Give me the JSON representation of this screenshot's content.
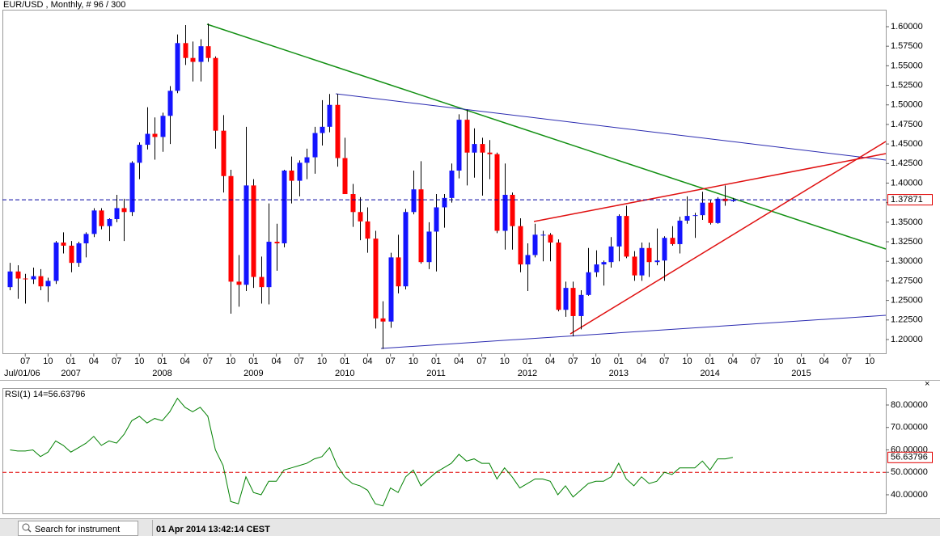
{
  "chart_data": [
    {
      "type": "candlestick",
      "title": "EUR/USD , Monthly, # 96 / 300",
      "start_label": "Jul/01/06",
      "x": [
        "2006-05",
        "2006-06",
        "2006-07",
        "2006-08",
        "2006-09",
        "2006-10",
        "2006-11",
        "2006-12",
        "2007-01",
        "2007-02",
        "2007-03",
        "2007-04",
        "2007-05",
        "2007-06",
        "2007-07",
        "2007-08",
        "2007-09",
        "2007-10",
        "2007-11",
        "2007-12",
        "2008-01",
        "2008-02",
        "2008-03",
        "2008-04",
        "2008-05",
        "2008-06",
        "2008-07",
        "2008-08",
        "2008-09",
        "2008-10",
        "2008-11",
        "2008-12",
        "2009-01",
        "2009-02",
        "2009-03",
        "2009-04",
        "2009-05",
        "2009-06",
        "2009-07",
        "2009-08",
        "2009-09",
        "2009-10",
        "2009-11",
        "2009-12",
        "2010-01",
        "2010-02",
        "2010-03",
        "2010-04",
        "2010-05",
        "2010-06",
        "2010-07",
        "2010-08",
        "2010-09",
        "2010-10",
        "2010-11",
        "2010-12",
        "2011-01",
        "2011-02",
        "2011-03",
        "2011-04",
        "2011-05",
        "2011-06",
        "2011-07",
        "2011-08",
        "2011-09",
        "2011-10",
        "2011-11",
        "2011-12",
        "2012-01",
        "2012-02",
        "2012-03",
        "2012-04",
        "2012-05",
        "2012-06",
        "2012-07",
        "2012-08",
        "2012-09",
        "2012-10",
        "2012-11",
        "2012-12",
        "2013-01",
        "2013-02",
        "2013-03",
        "2013-04",
        "2013-05",
        "2013-06",
        "2013-07",
        "2013-08",
        "2013-09",
        "2013-10",
        "2013-11",
        "2013-12",
        "2014-01",
        "2014-02",
        "2014-03",
        "2014-04"
      ],
      "open": [
        1.267,
        1.287,
        1.278,
        1.277,
        1.281,
        1.268,
        1.275,
        1.324,
        1.32,
        1.298,
        1.323,
        1.335,
        1.365,
        1.345,
        1.354,
        1.368,
        1.363,
        1.426,
        1.449,
        1.463,
        1.459,
        1.486,
        1.518,
        1.579,
        1.56,
        1.555,
        1.575,
        1.56,
        1.467,
        1.409,
        1.274,
        1.27,
        1.397,
        1.28,
        1.267,
        1.325,
        1.323,
        1.416,
        1.403,
        1.426,
        1.433,
        1.464,
        1.472,
        1.5,
        1.432,
        1.386,
        1.363,
        1.351,
        1.329,
        1.227,
        1.223,
        1.305,
        1.268,
        1.363,
        1.392,
        1.299,
        1.338,
        1.369,
        1.381,
        1.416,
        1.481,
        1.439,
        1.45,
        1.439,
        1.437,
        1.339,
        1.385,
        1.345,
        1.296,
        1.308,
        1.334,
        1.334,
        1.324,
        1.238,
        1.266,
        1.23,
        1.257,
        1.286,
        1.296,
        1.299,
        1.319,
        1.358,
        1.306,
        1.282,
        1.317,
        1.299,
        1.301,
        1.33,
        1.322,
        1.352,
        1.358,
        1.359,
        1.375,
        1.349,
        1.38,
        1.377
      ],
      "high": [
        1.298,
        1.295,
        1.284,
        1.292,
        1.29,
        1.279,
        1.326,
        1.337,
        1.326,
        1.325,
        1.337,
        1.368,
        1.368,
        1.355,
        1.385,
        1.38,
        1.428,
        1.452,
        1.497,
        1.484,
        1.49,
        1.524,
        1.59,
        1.602,
        1.581,
        1.584,
        1.604,
        1.562,
        1.487,
        1.417,
        1.308,
        1.472,
        1.405,
        1.306,
        1.374,
        1.348,
        1.417,
        1.434,
        1.429,
        1.444,
        1.472,
        1.506,
        1.514,
        1.514,
        1.458,
        1.399,
        1.382,
        1.369,
        1.339,
        1.249,
        1.311,
        1.334,
        1.367,
        1.416,
        1.428,
        1.35,
        1.386,
        1.386,
        1.425,
        1.488,
        1.494,
        1.47,
        1.458,
        1.455,
        1.439,
        1.425,
        1.388,
        1.355,
        1.323,
        1.348,
        1.339,
        1.336,
        1.328,
        1.274,
        1.274,
        1.263,
        1.317,
        1.314,
        1.301,
        1.331,
        1.36,
        1.371,
        1.313,
        1.324,
        1.324,
        1.342,
        1.332,
        1.345,
        1.357,
        1.383,
        1.362,
        1.389,
        1.378,
        1.382,
        1.397,
        1.381
      ],
      "low": [
        1.263,
        1.252,
        1.246,
        1.271,
        1.263,
        1.248,
        1.271,
        1.31,
        1.286,
        1.293,
        1.305,
        1.331,
        1.341,
        1.326,
        1.35,
        1.326,
        1.358,
        1.405,
        1.443,
        1.43,
        1.44,
        1.45,
        1.515,
        1.551,
        1.53,
        1.53,
        1.555,
        1.444,
        1.388,
        1.233,
        1.242,
        1.262,
        1.266,
        1.246,
        1.245,
        1.288,
        1.318,
        1.374,
        1.383,
        1.405,
        1.412,
        1.448,
        1.465,
        1.421,
        1.386,
        1.344,
        1.327,
        1.311,
        1.214,
        1.188,
        1.215,
        1.259,
        1.264,
        1.36,
        1.297,
        1.29,
        1.287,
        1.343,
        1.375,
        1.406,
        1.397,
        1.407,
        1.384,
        1.405,
        1.336,
        1.315,
        1.315,
        1.286,
        1.262,
        1.305,
        1.3,
        1.3,
        1.236,
        1.229,
        1.204,
        1.213,
        1.256,
        1.28,
        1.269,
        1.292,
        1.3,
        1.304,
        1.275,
        1.275,
        1.28,
        1.295,
        1.275,
        1.32,
        1.31,
        1.348,
        1.33,
        1.353,
        1.347,
        1.348,
        1.371,
        1.376
      ],
      "close": [
        1.287,
        1.278,
        1.277,
        1.281,
        1.268,
        1.275,
        1.324,
        1.32,
        1.298,
        1.323,
        1.335,
        1.365,
        1.345,
        1.354,
        1.368,
        1.363,
        1.426,
        1.449,
        1.463,
        1.459,
        1.486,
        1.518,
        1.579,
        1.56,
        1.555,
        1.575,
        1.56,
        1.467,
        1.409,
        1.274,
        1.27,
        1.397,
        1.28,
        1.267,
        1.325,
        1.323,
        1.416,
        1.403,
        1.426,
        1.433,
        1.464,
        1.472,
        1.5,
        1.432,
        1.386,
        1.363,
        1.351,
        1.329,
        1.227,
        1.223,
        1.305,
        1.268,
        1.363,
        1.392,
        1.299,
        1.338,
        1.369,
        1.381,
        1.416,
        1.481,
        1.439,
        1.45,
        1.439,
        1.437,
        1.339,
        1.385,
        1.345,
        1.296,
        1.308,
        1.334,
        1.334,
        1.324,
        1.238,
        1.266,
        1.23,
        1.257,
        1.286,
        1.296,
        1.299,
        1.319,
        1.358,
        1.306,
        1.282,
        1.317,
        1.299,
        1.301,
        1.33,
        1.322,
        1.352,
        1.358,
        1.359,
        1.375,
        1.349,
        1.38,
        1.377,
        1.3787
      ],
      "up_color": "#1414ff",
      "down_color": "#ff0000",
      "wick_color": "#000000",
      "last_price": 1.37871,
      "last_price_color": "#0000a0",
      "xlim": [
        "2006-04",
        "2015-12"
      ],
      "xticks": [
        {
          "value": "2006-07",
          "label": "07"
        },
        {
          "value": "2006-10",
          "label": "10"
        },
        {
          "value": "2007-01",
          "label": "01"
        },
        {
          "value": "2007-04",
          "label": "04"
        },
        {
          "value": "2007-07",
          "label": "07"
        },
        {
          "value": "2007-10",
          "label": "10"
        },
        {
          "value": "2008-01",
          "label": "01"
        },
        {
          "value": "2008-04",
          "label": "04"
        },
        {
          "value": "2008-07",
          "label": "07"
        },
        {
          "value": "2008-10",
          "label": "10"
        },
        {
          "value": "2009-01",
          "label": "01"
        },
        {
          "value": "2009-04",
          "label": "04"
        },
        {
          "value": "2009-07",
          "label": "07"
        },
        {
          "value": "2009-10",
          "label": "10"
        },
        {
          "value": "2010-01",
          "label": "01"
        },
        {
          "value": "2010-04",
          "label": "04"
        },
        {
          "value": "2010-07",
          "label": "07"
        },
        {
          "value": "2010-10",
          "label": "10"
        },
        {
          "value": "2011-01",
          "label": "01"
        },
        {
          "value": "2011-04",
          "label": "04"
        },
        {
          "value": "2011-07",
          "label": "07"
        },
        {
          "value": "2011-10",
          "label": "10"
        },
        {
          "value": "2012-01",
          "label": "01"
        },
        {
          "value": "2012-04",
          "label": "04"
        },
        {
          "value": "2012-07",
          "label": "07"
        },
        {
          "value": "2012-10",
          "label": "10"
        },
        {
          "value": "2013-01",
          "label": "01"
        },
        {
          "value": "2013-04",
          "label": "04"
        },
        {
          "value": "2013-07",
          "label": "07"
        },
        {
          "value": "2013-10",
          "label": "10"
        },
        {
          "value": "2014-01",
          "label": "01"
        },
        {
          "value": "2014-04",
          "label": "04"
        },
        {
          "value": "2014-07",
          "label": "07"
        },
        {
          "value": "2014-10",
          "label": "10"
        },
        {
          "value": "2015-01",
          "label": "01"
        },
        {
          "value": "2015-04",
          "label": "04"
        },
        {
          "value": "2015-07",
          "label": "07"
        },
        {
          "value": "2015-10",
          "label": "10"
        }
      ],
      "year_ticks": [
        {
          "value": "2007-01",
          "label": "2007"
        },
        {
          "value": "2008-01",
          "label": "2008"
        },
        {
          "value": "2009-01",
          "label": "2009"
        },
        {
          "value": "2010-01",
          "label": "2010"
        },
        {
          "value": "2011-01",
          "label": "2011"
        },
        {
          "value": "2012-01",
          "label": "2012"
        },
        {
          "value": "2013-01",
          "label": "2013"
        },
        {
          "value": "2014-01",
          "label": "2014"
        },
        {
          "value": "2015-01",
          "label": "2015"
        }
      ],
      "ylim": [
        1.1824,
        1.6217
      ],
      "yticks": [
        {
          "value": 1.2,
          "label": "1.20000"
        },
        {
          "value": 1.225,
          "label": "1.22500"
        },
        {
          "value": 1.25,
          "label": "1.25000"
        },
        {
          "value": 1.275,
          "label": "1.27500"
        },
        {
          "value": 1.3,
          "label": "1.30000"
        },
        {
          "value": 1.325,
          "label": "1.32500"
        },
        {
          "value": 1.35,
          "label": "1.35000"
        },
        {
          "value": 1.375,
          "label": "1.37500"
        },
        {
          "value": 1.4,
          "label": "1.40000"
        },
        {
          "value": 1.425,
          "label": "1.42500"
        },
        {
          "value": 1.45,
          "label": "1.45000"
        },
        {
          "value": 1.475,
          "label": "1.47500"
        },
        {
          "value": 1.5,
          "label": "1.50000"
        },
        {
          "value": 1.525,
          "label": "1.52500"
        },
        {
          "value": 1.55,
          "label": "1.55000"
        },
        {
          "value": 1.575,
          "label": "1.57500"
        },
        {
          "value": 1.6,
          "label": "1.60000"
        }
      ]
    },
    {
      "type": "line",
      "title": "RSI(1) 14=56.63796",
      "color": "#008000",
      "values": [
        60,
        59.5,
        59.5,
        60,
        57,
        59,
        64,
        62,
        59,
        61,
        63,
        66,
        62,
        64,
        63,
        67,
        73,
        75,
        72,
        74,
        73,
        77,
        83,
        79,
        77,
        79,
        75,
        60,
        53,
        37,
        36,
        48,
        41,
        40,
        46,
        46,
        51,
        52,
        53,
        54,
        56,
        57,
        61,
        53,
        48,
        45,
        44,
        42,
        36,
        35,
        43,
        41,
        48,
        51,
        44,
        47,
        50,
        52,
        54,
        58,
        55,
        56,
        54,
        54,
        47,
        52,
        48,
        43,
        45,
        47,
        47,
        46,
        40,
        44,
        39,
        42,
        45,
        46,
        46,
        48,
        54,
        47,
        44,
        48,
        45,
        46,
        50,
        49,
        52,
        52,
        52,
        55,
        51,
        56,
        56,
        56.63796
      ],
      "level": 50,
      "level_color": "#e00000",
      "ylim": [
        31.7,
        87.2
      ],
      "yticks": [
        {
          "value": 40,
          "label": "40.00000"
        },
        {
          "value": 50,
          "label": "50.00000"
        },
        {
          "value": 60,
          "label": "60.00000"
        },
        {
          "value": 70,
          "label": "70.00000"
        },
        {
          "value": 80,
          "label": "80.00000"
        }
      ]
    }
  ],
  "ui": {
    "search_placeholder": "Search for instrument",
    "datetime": "01 Apr 2014 13:42:14 CEST"
  }
}
